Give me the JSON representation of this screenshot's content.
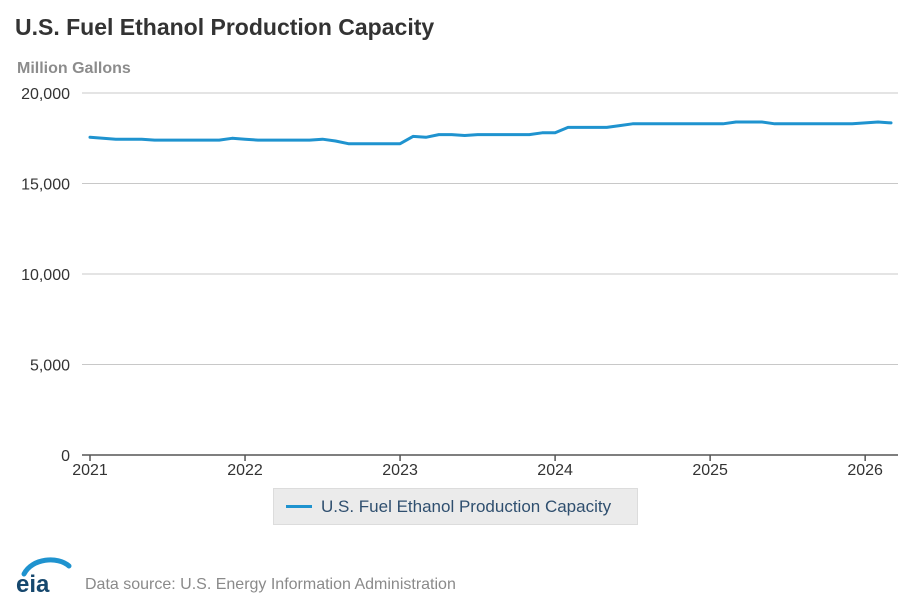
{
  "header": {
    "title": "U.S. Fuel Ethanol Production Capacity",
    "units": "Million Gallons"
  },
  "footer": {
    "logo_text": "eia",
    "source": "Data source: U.S. Energy Information Administration"
  },
  "colors": {
    "series": "#1f93cf",
    "grid": "#c8c8c8",
    "axis": "#555555",
    "title": "#333333",
    "units": "#8c8c8c"
  },
  "chart_data": {
    "type": "line",
    "title": "U.S. Fuel Ethanol Production Capacity",
    "ylabel": "Million Gallons",
    "xlabel": "",
    "ylim": [
      0,
      20000
    ],
    "xlim": [
      "2021-01",
      "2026-03"
    ],
    "yticks": [
      0,
      5000,
      10000,
      15000,
      20000
    ],
    "ytick_labels": [
      "0",
      "5,000",
      "10,000",
      "15,000",
      "20,000"
    ],
    "xticks": [
      "2021-01",
      "2022-01",
      "2023-01",
      "2024-01",
      "2025-01",
      "2026-01"
    ],
    "xtick_labels": [
      "2021",
      "2022",
      "2023",
      "2024",
      "2025",
      "2026"
    ],
    "grid": true,
    "legend_position": "bottom",
    "series": [
      {
        "name": "U.S. Fuel Ethanol Production Capacity",
        "x": [
          "2021-01",
          "2021-02",
          "2021-03",
          "2021-04",
          "2021-05",
          "2021-06",
          "2021-07",
          "2021-08",
          "2021-09",
          "2021-10",
          "2021-11",
          "2021-12",
          "2022-01",
          "2022-02",
          "2022-03",
          "2022-04",
          "2022-05",
          "2022-06",
          "2022-07",
          "2022-08",
          "2022-09",
          "2022-10",
          "2022-11",
          "2022-12",
          "2023-01",
          "2023-02",
          "2023-03",
          "2023-04",
          "2023-05",
          "2023-06",
          "2023-07",
          "2023-08",
          "2023-09",
          "2023-10",
          "2023-11",
          "2023-12",
          "2024-01",
          "2024-02",
          "2024-03",
          "2024-04",
          "2024-05",
          "2024-06",
          "2024-07",
          "2024-08",
          "2024-09",
          "2024-10",
          "2024-11",
          "2024-12",
          "2025-01",
          "2025-02",
          "2025-03",
          "2025-04",
          "2025-05",
          "2025-06",
          "2025-07",
          "2025-08",
          "2025-09",
          "2025-10",
          "2025-11",
          "2025-12",
          "2026-01",
          "2026-02",
          "2026-03"
        ],
        "values": [
          17550,
          17500,
          17450,
          17450,
          17450,
          17400,
          17400,
          17400,
          17400,
          17400,
          17400,
          17500,
          17450,
          17400,
          17400,
          17400,
          17400,
          17400,
          17450,
          17350,
          17200,
          17200,
          17200,
          17200,
          17200,
          17600,
          17550,
          17700,
          17700,
          17650,
          17700,
          17700,
          17700,
          17700,
          17700,
          17800,
          17800,
          18100,
          18100,
          18100,
          18100,
          18200,
          18300,
          18300,
          18300,
          18300,
          18300,
          18300,
          18300,
          18300,
          18400,
          18400,
          18400,
          18300,
          18300,
          18300,
          18300,
          18300,
          18300,
          18300,
          18350,
          18400,
          18350
        ]
      }
    ]
  }
}
